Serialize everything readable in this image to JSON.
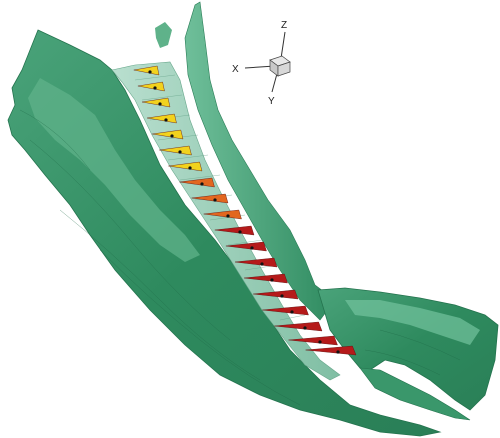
{
  "axes": {
    "z_label": "Z",
    "x_label": "X",
    "y_label": "Y"
  },
  "colors": {
    "terrain_dark": "#2e8a5e",
    "terrain_mid": "#3d9e70",
    "terrain_light": "#7fc9a6",
    "channel_wall": "#9ed1bc",
    "vector_red": "#b51a1a",
    "vector_orange": "#e2671f",
    "vector_yellow": "#f2d21d",
    "background": "#ffffff"
  },
  "icons": {
    "axis_triad": "axis-triad-icon"
  }
}
